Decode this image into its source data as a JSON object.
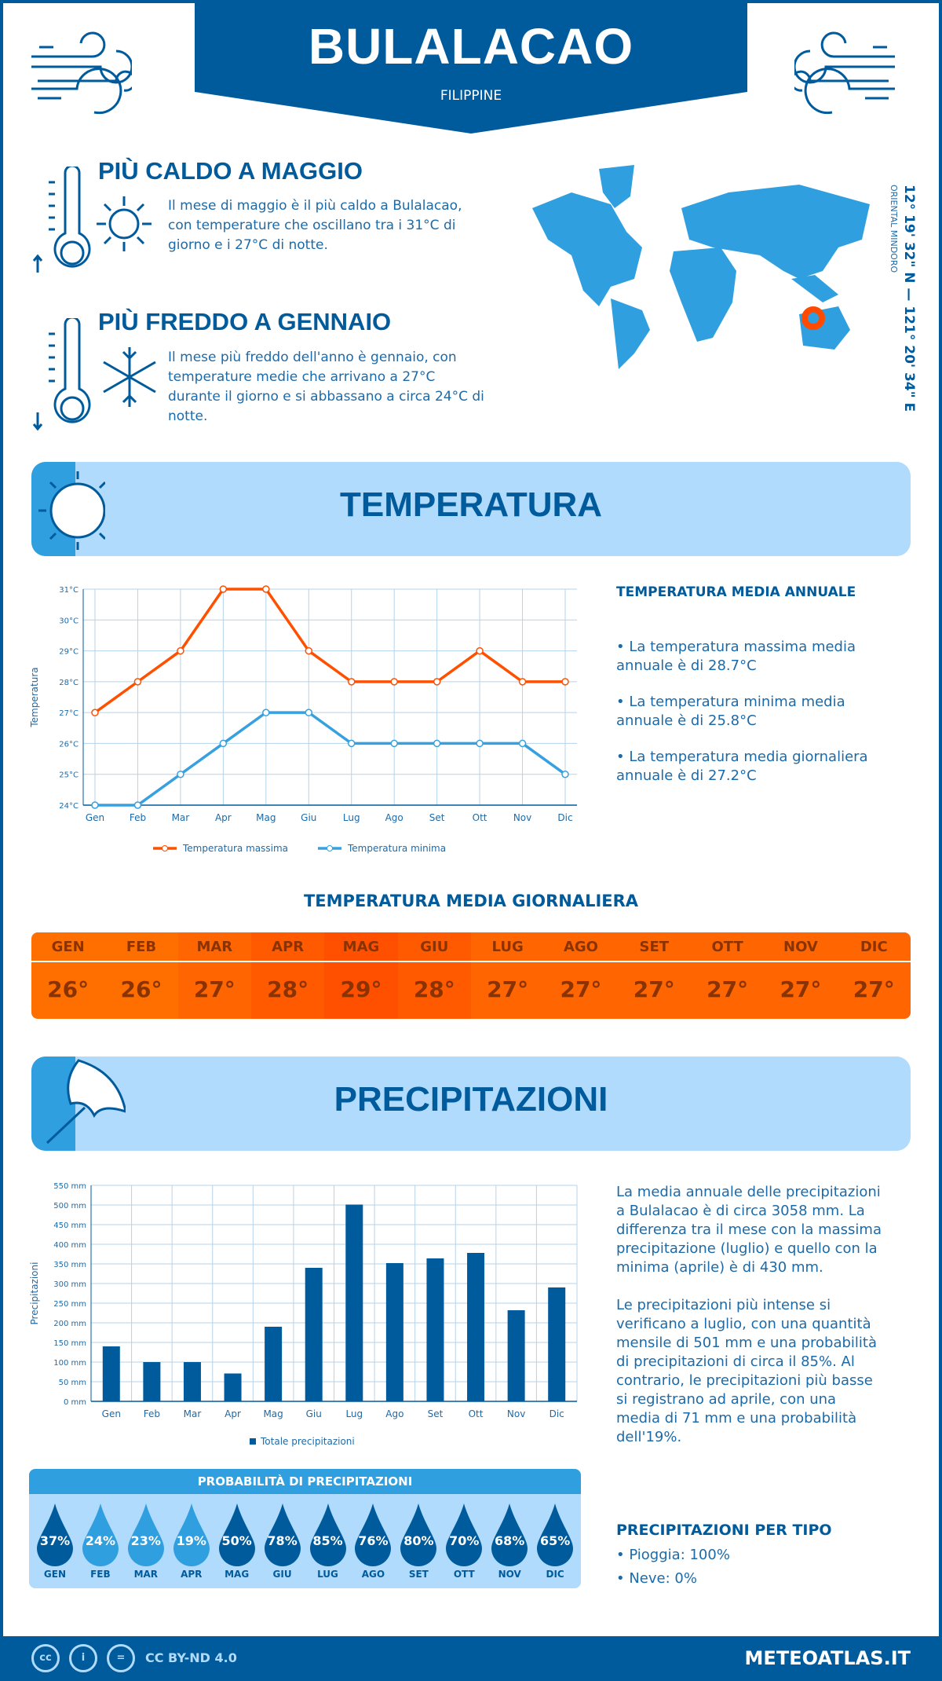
{
  "header": {
    "title": "BULALACAO",
    "subtitle": "FILIPPINE"
  },
  "hot": {
    "heading": "PIÙ CALDO A MAGGIO",
    "text": "Il mese di maggio è il più caldo a Bulalacao, con temperature che oscillano tra i 31°C di giorno e i 27°C di notte."
  },
  "cold": {
    "heading": "PIÙ FREDDO A GENNAIO",
    "text": "Il mese più freddo dell'anno è gennaio, con temperature medie che arrivano a 27°C durante il giorno e si abbassano a circa 24°C di notte."
  },
  "location": {
    "coords": "12° 19' 32\" N — 121° 20' 34\" E",
    "region": "ORIENTAL MINDORO"
  },
  "temperature_section": {
    "title": "TEMPERATURA",
    "annual_heading": "TEMPERATURA MEDIA ANNUALE",
    "bullets": [
      "• La temperatura massima media annuale è di 28.7°C",
      "• La temperatura minima media annuale è di 25.8°C",
      "• La temperatura media giornaliera annuale è di 27.2°C"
    ],
    "daily_heading": "TEMPERATURA MEDIA GIORNALIERA"
  },
  "daily": {
    "months": [
      "GEN",
      "FEB",
      "MAR",
      "APR",
      "MAG",
      "GIU",
      "LUG",
      "AGO",
      "SET",
      "OTT",
      "NOV",
      "DIC"
    ],
    "values": [
      "26°",
      "26°",
      "27°",
      "28°",
      "29°",
      "28°",
      "27°",
      "27°",
      "27°",
      "27°",
      "27°",
      "27°"
    ],
    "colors": [
      "#ff6f00",
      "#ff6f00",
      "#ff6500",
      "#ff5a00",
      "#ff5000",
      "#ff5a00",
      "#ff6500",
      "#ff6500",
      "#ff6500",
      "#ff6500",
      "#ff6500",
      "#ff6500"
    ]
  },
  "precip_section": {
    "title": "PRECIPITAZIONI",
    "p1": "La media annuale delle precipitazioni a Bulalacao è di circa 3058 mm. La differenza tra il mese con la massima precipitazione (luglio) e quello con la minima (aprile) è di 430 mm.",
    "p2": "Le precipitazioni più intense si verificano a luglio, con una quantità mensile di 501 mm e una probabilità di precipitazioni di circa il 85%. Al contrario, le precipitazioni più basse si registrano ad aprile, con una media di 71 mm e una probabilità dell'19%.",
    "prob_heading": "PROBABILITÀ DI PRECIPITAZIONI",
    "type_heading": "PRECIPITAZIONI PER TIPO",
    "types": [
      "• Pioggia: 100%",
      "• Neve: 0%"
    ]
  },
  "probability": {
    "months": [
      "GEN",
      "FEB",
      "MAR",
      "APR",
      "MAG",
      "GIU",
      "LUG",
      "AGO",
      "SET",
      "OTT",
      "NOV",
      "DIC"
    ],
    "values": [
      "37%",
      "24%",
      "23%",
      "19%",
      "50%",
      "78%",
      "85%",
      "76%",
      "80%",
      "70%",
      "68%",
      "65%"
    ],
    "colors": [
      "#005b9c",
      "#2f9fdf",
      "#2f9fdf",
      "#2f9fdf",
      "#005b9c",
      "#005b9c",
      "#005b9c",
      "#005b9c",
      "#005b9c",
      "#005b9c",
      "#005b9c",
      "#005b9c"
    ]
  },
  "footer": {
    "license": "CC BY-ND 4.0",
    "brand": "METEOATLAS.IT"
  },
  "colors": {
    "dark_blue": "#005b9c",
    "mid_blue": "#2f9fdf",
    "light_blue": "#b0dbfc",
    "max_line": "#ff5000",
    "min_line": "#36a0e0"
  },
  "chart_data": [
    {
      "type": "line",
      "categories": [
        "Gen",
        "Feb",
        "Mar",
        "Apr",
        "Mag",
        "Giu",
        "Lug",
        "Ago",
        "Set",
        "Ott",
        "Nov",
        "Dic"
      ],
      "ylabel": "Temperatura",
      "ylim": [
        24,
        31
      ],
      "yticks": [
        "24°C",
        "25°C",
        "26°C",
        "27°C",
        "28°C",
        "29°C",
        "30°C",
        "31°C"
      ],
      "grid": true,
      "legend": "bottom",
      "series": [
        {
          "name": "Temperatura massima",
          "values": [
            27,
            28,
            29,
            31,
            31,
            29,
            28,
            28,
            28,
            29,
            28,
            28
          ]
        },
        {
          "name": "Temperatura minima",
          "values": [
            24,
            24,
            25,
            26,
            27,
            27,
            26,
            26,
            26,
            26,
            26,
            25
          ]
        }
      ]
    },
    {
      "type": "bar",
      "categories": [
        "Gen",
        "Feb",
        "Mar",
        "Apr",
        "Mag",
        "Giu",
        "Lug",
        "Ago",
        "Set",
        "Ott",
        "Nov",
        "Dic"
      ],
      "ylabel": "Precipitazioni",
      "ylim": [
        0,
        550
      ],
      "yticks": [
        "0 mm",
        "50 mm",
        "100 mm",
        "150 mm",
        "200 mm",
        "250 mm",
        "300 mm",
        "350 mm",
        "400 mm",
        "450 mm",
        "500 mm",
        "550 mm"
      ],
      "grid": true,
      "legend": "bottom",
      "series": [
        {
          "name": "Totale precipitazioni",
          "values": [
            140,
            100,
            100,
            71,
            190,
            340,
            501,
            352,
            364,
            378,
            232,
            290
          ]
        }
      ]
    }
  ]
}
